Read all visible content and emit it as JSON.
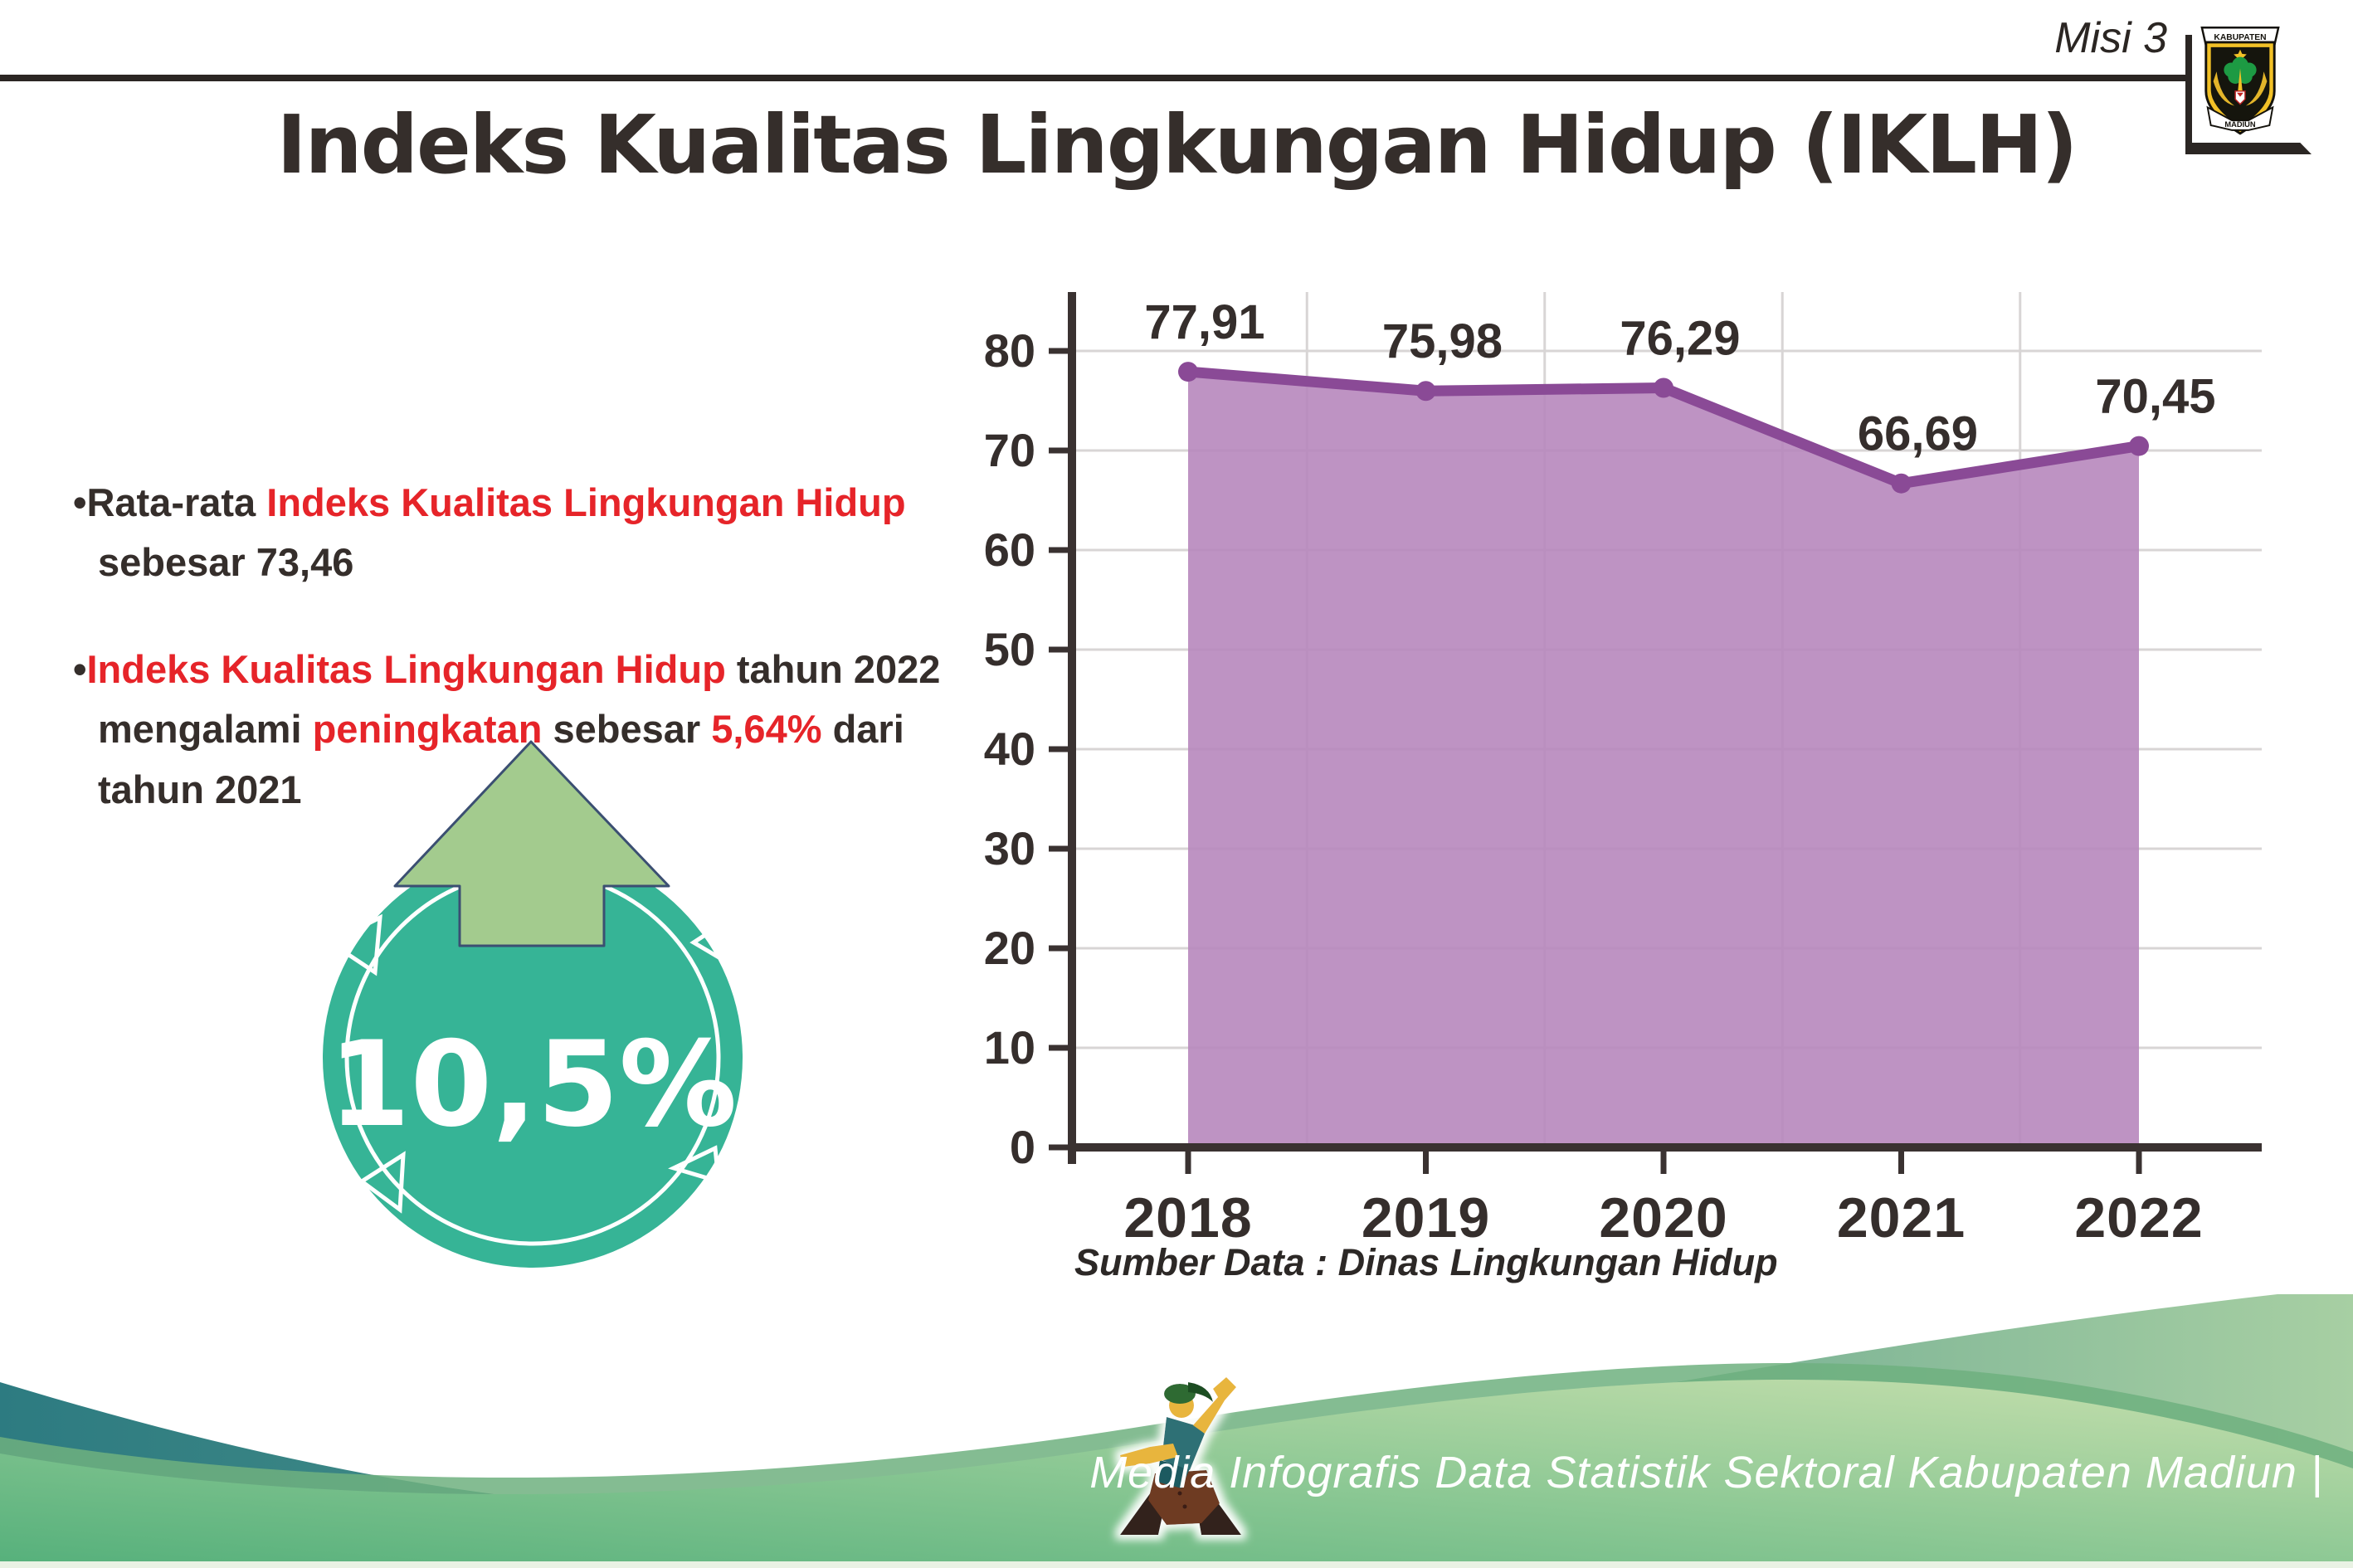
{
  "header": {
    "tag": "Misi 3",
    "logo_top": "KABUPATEN",
    "logo_bottom": "MADIUN"
  },
  "title": "Indeks Kualitas Lingkungan Hidup (IKLH)",
  "bullets": [
    {
      "segments": [
        {
          "text": "•Rata-rata ",
          "red": false
        },
        {
          "text": "Indeks Kualitas Lingkungan Hidup",
          "red": true
        },
        {
          "text": " sebesar 73,46",
          "red": false
        }
      ]
    },
    {
      "segments": [
        {
          "text": "•",
          "red": false
        },
        {
          "text": "Indeks Kualitas Lingkungan Hidup",
          "red": true
        },
        {
          "text": " tahun 2022 mengalami ",
          "red": false
        },
        {
          "text": "peningkatan",
          "red": true
        },
        {
          "text": " sebesar ",
          "red": false
        },
        {
          "text": "5,64%",
          "red": true
        },
        {
          "text": " dari tahun 2021",
          "red": false
        }
      ]
    }
  ],
  "badge": {
    "value": "10,5%"
  },
  "chart_data": {
    "type": "area",
    "categories": [
      "2018",
      "2019",
      "2020",
      "2021",
      "2022"
    ],
    "values": [
      77.91,
      75.98,
      76.29,
      66.69,
      70.45
    ],
    "labels": [
      "77,91",
      "75,98",
      "76,29",
      "66,69",
      "70,45"
    ],
    "ylim": [
      0,
      85
    ],
    "yticks": [
      0,
      10,
      20,
      30,
      40,
      50,
      60,
      70,
      80
    ],
    "grid": "on",
    "legend": "none",
    "source": "Sumber Data : Dinas Lingkungan Hidup",
    "colors": {
      "area": "#b787bd",
      "line": "#8a4a96",
      "marker": "#8a4a96",
      "axis": "#3a3231",
      "grid": "#d8d5d5",
      "text": "#352e2c"
    }
  },
  "footer": {
    "credit": "Media Infografis Data Statistik Sektoral Kabupaten Madiun |"
  },
  "colors": {
    "red": "#e62429",
    "text_dark": "#352e2b",
    "badge_teal": "#36b496",
    "badge_arrow_green": "#a3cb8e",
    "chart_area_purple": "#b787bd",
    "chart_line_purple": "#8a4a96",
    "footer_teal": "#2d7b81",
    "footer_green": "#7dbd88"
  }
}
